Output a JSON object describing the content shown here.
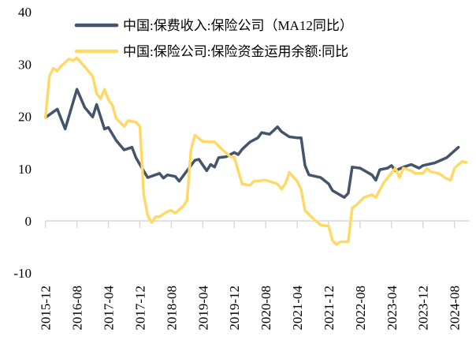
{
  "chart_data": {
    "type": "line",
    "title": "",
    "xlabel": "",
    "ylabel": "",
    "ylim": [
      -10,
      40
    ],
    "yticks": [
      "40",
      "30",
      "20",
      "10",
      "0",
      "-10"
    ],
    "ytick_values": [
      40,
      30,
      20,
      10,
      0,
      -10
    ],
    "xlim": [
      "2015-12",
      "2024-11"
    ],
    "xticks": [
      "2015-12",
      "2016-08",
      "2017-04",
      "2017-12",
      "2018-08",
      "2019-04",
      "2019-12",
      "2020-08",
      "2021-04",
      "2021-12",
      "2022-08",
      "2023-04",
      "2023-12",
      "2024-08"
    ],
    "grid": false,
    "legend_position": "top",
    "series": [
      {
        "name": "中国:保费收入:保险公司（MA12同比）",
        "color": "#44546a",
        "x": [
          "2015-12",
          "2016-03",
          "2016-05",
          "2016-08",
          "2016-10",
          "2016-12",
          "2017-01",
          "2017-03",
          "2017-04",
          "2017-06",
          "2017-08",
          "2017-10",
          "2017-11",
          "2017-12",
          "2018-02",
          "2018-05",
          "2018-06",
          "2018-07",
          "2018-09",
          "2018-10",
          "2018-12",
          "2019-02",
          "2019-03",
          "2019-05",
          "2019-06",
          "2019-07",
          "2019-08",
          "2019-10",
          "2019-12",
          "2020-01",
          "2020-02",
          "2020-04",
          "2020-06",
          "2020-07",
          "2020-09",
          "2020-11",
          "2020-12",
          "2021-02",
          "2021-04",
          "2021-05",
          "2021-06",
          "2021-07",
          "2021-10",
          "2021-12",
          "2022-01",
          "2022-04",
          "2022-05",
          "2022-06",
          "2022-08",
          "2022-11",
          "2022-12",
          "2023-01",
          "2023-03",
          "2023-04",
          "2023-05",
          "2023-07",
          "2023-09",
          "2023-11",
          "2023-12",
          "2024-03",
          "2024-06",
          "2024-09"
        ],
        "y": [
          19.8,
          21.4,
          17.6,
          25.2,
          21.7,
          19.9,
          22.3,
          17.6,
          17.9,
          15.4,
          13.6,
          14.1,
          12.1,
          10.8,
          8.3,
          9.1,
          8.2,
          8.8,
          8.5,
          7.6,
          9.6,
          11.6,
          11.8,
          9.6,
          10.8,
          10.3,
          12.1,
          12.3,
          13.1,
          12.7,
          13.7,
          15.1,
          15.9,
          16.9,
          16.6,
          18.0,
          17.1,
          16.1,
          15.9,
          15.9,
          10.6,
          8.8,
          8.3,
          7.1,
          5.8,
          4.5,
          5.3,
          10.3,
          10.1,
          8.8,
          7.8,
          9.8,
          10.1,
          10.6,
          9.6,
          10.3,
          10.8,
          10.1,
          10.6,
          11.1,
          12.1,
          14.1
        ]
      },
      {
        "name": "中国:保险公司:保险资金运用余额:同比",
        "color": "#ffd966",
        "x": [
          "2015-12",
          "2016-01",
          "2016-02",
          "2016-03",
          "2016-04",
          "2016-06",
          "2016-07",
          "2016-08",
          "2016-10",
          "2016-12",
          "2017-01",
          "2017-02",
          "2017-03",
          "2017-04",
          "2017-05",
          "2017-06",
          "2017-08",
          "2017-09",
          "2017-11",
          "2017-12",
          "2018-01",
          "2018-02",
          "2018-03",
          "2018-04",
          "2018-05",
          "2018-07",
          "2018-08",
          "2018-09",
          "2018-11",
          "2018-12",
          "2019-01",
          "2019-02",
          "2019-04",
          "2019-07",
          "2019-09",
          "2019-11",
          "2019-12",
          "2020-01",
          "2020-02",
          "2020-04",
          "2020-05",
          "2020-08",
          "2020-11",
          "2020-12",
          "2021-01",
          "2021-02",
          "2021-04",
          "2021-05",
          "2021-06",
          "2021-08",
          "2021-10",
          "2021-12",
          "2022-01",
          "2022-02",
          "2022-03",
          "2022-05",
          "2022-06",
          "2022-07",
          "2022-09",
          "2022-11",
          "2022-12",
          "2023-02",
          "2023-05",
          "2023-06",
          "2023-07",
          "2023-09",
          "2023-10",
          "2023-12",
          "2024-01",
          "2024-02",
          "2024-04",
          "2024-06",
          "2024-07",
          "2024-08",
          "2024-10",
          "2024-11"
        ],
        "y": [
          19.8,
          27.7,
          29.2,
          28.7,
          29.7,
          31.0,
          30.7,
          31.2,
          29.5,
          27.7,
          24.4,
          23.4,
          25.2,
          23.2,
          22.2,
          19.6,
          18.1,
          19.2,
          18.9,
          18.1,
          5.0,
          1.0,
          -0.3,
          0.8,
          0.8,
          1.8,
          2.0,
          1.5,
          2.8,
          3.9,
          13.6,
          16.4,
          15.2,
          15.1,
          13.6,
          12.3,
          12.2,
          9.6,
          7.1,
          6.8,
          7.6,
          7.8,
          7.1,
          6.1,
          7.1,
          9.3,
          7.6,
          6.0,
          2.0,
          0.5,
          -0.8,
          -1.0,
          -3.8,
          -4.5,
          -4.0,
          -4.0,
          2.5,
          3.0,
          4.5,
          5.0,
          4.5,
          7.3,
          10.1,
          8.3,
          10.1,
          9.6,
          9.1,
          9.1,
          10.0,
          9.4,
          9.1,
          8.1,
          7.8,
          10.1,
          11.4,
          11.2
        ]
      }
    ]
  }
}
